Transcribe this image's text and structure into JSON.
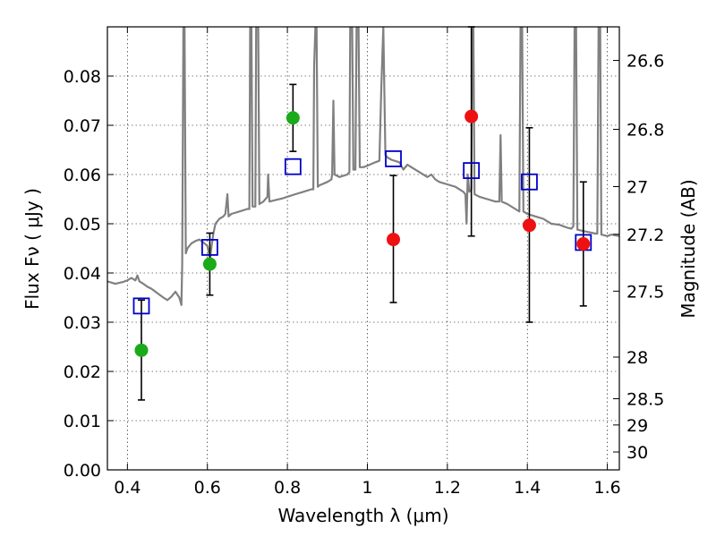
{
  "chart_data": {
    "type": "scatter",
    "xlabel": "Wavelength  λ (μm)",
    "ylabel": "Flux  Fν  ( μJy )",
    "y2label": "Magnitude (AB)",
    "xlim": [
      0.35,
      1.63
    ],
    "ylim": [
      0.0,
      0.09
    ],
    "x_ticks": [
      "0.4",
      "0.6",
      "0.8",
      "1",
      "1.2",
      "1.4",
      "1.6"
    ],
    "x_tick_values": [
      0.4,
      0.6,
      0.8,
      1.0,
      1.2,
      1.4,
      1.6
    ],
    "y_ticks": [
      "0.00",
      "0.01",
      "0.02",
      "0.03",
      "0.04",
      "0.05",
      "0.06",
      "0.07",
      "0.08"
    ],
    "y_tick_values": [
      0.0,
      0.01,
      0.02,
      0.03,
      0.04,
      0.05,
      0.06,
      0.07,
      0.08
    ],
    "y2_ticks": [
      "26.6",
      "26.8",
      "27",
      "27.2",
      "27.5",
      "28",
      "28.5",
      "29",
      "30"
    ],
    "y2_tick_values": [
      26.6,
      26.8,
      27.0,
      27.2,
      27.5,
      28.0,
      28.5,
      29.0,
      30.0
    ],
    "grid": true,
    "colors": {
      "template": "#808080",
      "green": "#1aaa1a",
      "red": "#ee1111",
      "model_box": "#0000cc",
      "errorbar": "#000000"
    },
    "series": [
      {
        "marker": "square-open",
        "color": "#0000cc",
        "points": [
          {
            "x": 0.435,
            "y": 0.0333
          },
          {
            "x": 0.606,
            "y": 0.0452
          },
          {
            "x": 0.814,
            "y": 0.0616
          },
          {
            "x": 1.065,
            "y": 0.0632
          },
          {
            "x": 1.26,
            "y": 0.0608
          },
          {
            "x": 1.405,
            "y": 0.0585
          },
          {
            "x": 1.54,
            "y": 0.0462
          }
        ]
      },
      {
        "marker": "circle",
        "color": "#1aaa1a",
        "points": [
          {
            "x": 0.435,
            "y": 0.0243,
            "ylow": 0.0142,
            "yhigh": 0.0345
          },
          {
            "x": 0.606,
            "y": 0.0418,
            "ylow": 0.0355,
            "yhigh": 0.0481
          },
          {
            "x": 0.814,
            "y": 0.0715,
            "ylow": 0.0647,
            "yhigh": 0.0783
          }
        ]
      },
      {
        "marker": "circle",
        "color": "#ee1111",
        "points": [
          {
            "x": 1.065,
            "y": 0.0468,
            "ylow": 0.034,
            "yhigh": 0.0598
          },
          {
            "x": 1.26,
            "y": 0.0718,
            "ylow": 0.0475,
            "yhigh": 0.09
          },
          {
            "x": 1.405,
            "y": 0.0497,
            "ylow": 0.03,
            "yhigh": 0.0695
          },
          {
            "x": 1.54,
            "y": 0.0459,
            "ylow": 0.0333,
            "yhigh": 0.0585
          }
        ]
      }
    ],
    "template_spectrum": [
      [
        0.35,
        0.0383
      ],
      [
        0.37,
        0.0378
      ],
      [
        0.39,
        0.0382
      ],
      [
        0.4,
        0.0385
      ],
      [
        0.41,
        0.039
      ],
      [
        0.42,
        0.0385
      ],
      [
        0.425,
        0.0395
      ],
      [
        0.43,
        0.0383
      ],
      [
        0.44,
        0.0378
      ],
      [
        0.45,
        0.0372
      ],
      [
        0.46,
        0.0368
      ],
      [
        0.47,
        0.0362
      ],
      [
        0.48,
        0.0356
      ],
      [
        0.49,
        0.035
      ],
      [
        0.5,
        0.0345
      ],
      [
        0.51,
        0.0352
      ],
      [
        0.52,
        0.0362
      ],
      [
        0.53,
        0.035
      ],
      [
        0.535,
        0.0335
      ],
      [
        0.537,
        0.042
      ],
      [
        0.54,
        0.09
      ],
      [
        0.543,
        0.09
      ],
      [
        0.546,
        0.044
      ],
      [
        0.55,
        0.045
      ],
      [
        0.56,
        0.046
      ],
      [
        0.57,
        0.0465
      ],
      [
        0.58,
        0.0468
      ],
      [
        0.59,
        0.0462
      ],
      [
        0.6,
        0.0455
      ],
      [
        0.604,
        0.044
      ],
      [
        0.607,
        0.043
      ],
      [
        0.61,
        0.0452
      ],
      [
        0.615,
        0.048
      ],
      [
        0.62,
        0.05
      ],
      [
        0.63,
        0.051
      ],
      [
        0.64,
        0.0515
      ],
      [
        0.645,
        0.052
      ],
      [
        0.65,
        0.056
      ],
      [
        0.653,
        0.0515
      ],
      [
        0.66,
        0.052
      ],
      [
        0.68,
        0.0525
      ],
      [
        0.7,
        0.053
      ],
      [
        0.705,
        0.053
      ],
      [
        0.707,
        0.09
      ],
      [
        0.71,
        0.09
      ],
      [
        0.713,
        0.0535
      ],
      [
        0.72,
        0.0535
      ],
      [
        0.722,
        0.09
      ],
      [
        0.727,
        0.09
      ],
      [
        0.73,
        0.054
      ],
      [
        0.74,
        0.0545
      ],
      [
        0.75,
        0.0555
      ],
      [
        0.752,
        0.06
      ],
      [
        0.755,
        0.0545
      ],
      [
        0.77,
        0.0548
      ],
      [
        0.79,
        0.0552
      ],
      [
        0.8,
        0.0555
      ],
      [
        0.82,
        0.056
      ],
      [
        0.84,
        0.0565
      ],
      [
        0.86,
        0.057
      ],
      [
        0.865,
        0.057
      ],
      [
        0.867,
        0.082
      ],
      [
        0.87,
        0.09
      ],
      [
        0.873,
        0.09
      ],
      [
        0.876,
        0.0575
      ],
      [
        0.88,
        0.0578
      ],
      [
        0.9,
        0.0585
      ],
      [
        0.91,
        0.059
      ],
      [
        0.912,
        0.06
      ],
      [
        0.915,
        0.075
      ],
      [
        0.918,
        0.06
      ],
      [
        0.93,
        0.0595
      ],
      [
        0.95,
        0.06
      ],
      [
        0.955,
        0.0605
      ],
      [
        0.957,
        0.09
      ],
      [
        0.962,
        0.09
      ],
      [
        0.965,
        0.061
      ],
      [
        0.97,
        0.061
      ],
      [
        0.973,
        0.09
      ],
      [
        0.978,
        0.09
      ],
      [
        0.981,
        0.0615
      ],
      [
        0.99,
        0.0615
      ],
      [
        1.0,
        0.0618
      ],
      [
        1.02,
        0.0625
      ],
      [
        1.03,
        0.0628
      ],
      [
        1.035,
        0.078
      ],
      [
        1.04,
        0.09
      ],
      [
        1.045,
        0.064
      ],
      [
        1.05,
        0.0635
      ],
      [
        1.06,
        0.063
      ],
      [
        1.08,
        0.0625
      ],
      [
        1.09,
        0.061
      ],
      [
        1.1,
        0.062
      ],
      [
        1.11,
        0.0615
      ],
      [
        1.13,
        0.0605
      ],
      [
        1.15,
        0.0595
      ],
      [
        1.16,
        0.06
      ],
      [
        1.17,
        0.059
      ],
      [
        1.18,
        0.0585
      ],
      [
        1.2,
        0.058
      ],
      [
        1.22,
        0.0575
      ],
      [
        1.24,
        0.0565
      ],
      [
        1.245,
        0.056
      ],
      [
        1.248,
        0.05
      ],
      [
        1.251,
        0.06
      ],
      [
        1.255,
        0.0565
      ],
      [
        1.26,
        0.057
      ],
      [
        1.262,
        0.09
      ],
      [
        1.265,
        0.09
      ],
      [
        1.268,
        0.056
      ],
      [
        1.28,
        0.0555
      ],
      [
        1.3,
        0.055
      ],
      [
        1.32,
        0.0545
      ],
      [
        1.33,
        0.0545
      ],
      [
        1.333,
        0.068
      ],
      [
        1.336,
        0.0545
      ],
      [
        1.35,
        0.054
      ],
      [
        1.37,
        0.053
      ],
      [
        1.38,
        0.0525
      ],
      [
        1.383,
        0.09
      ],
      [
        1.387,
        0.09
      ],
      [
        1.39,
        0.0525
      ],
      [
        1.4,
        0.052
      ],
      [
        1.42,
        0.0515
      ],
      [
        1.44,
        0.051
      ],
      [
        1.45,
        0.0505
      ],
      [
        1.46,
        0.05
      ],
      [
        1.48,
        0.0498
      ],
      [
        1.49,
        0.0495
      ],
      [
        1.5,
        0.0492
      ],
      [
        1.51,
        0.049
      ],
      [
        1.515,
        0.0495
      ],
      [
        1.518,
        0.09
      ],
      [
        1.522,
        0.09
      ],
      [
        1.525,
        0.0488
      ],
      [
        1.54,
        0.0485
      ],
      [
        1.56,
        0.0482
      ],
      [
        1.57,
        0.048
      ],
      [
        1.575,
        0.048
      ],
      [
        1.578,
        0.09
      ],
      [
        1.582,
        0.09
      ],
      [
        1.585,
        0.0478
      ],
      [
        1.6,
        0.0475
      ],
      [
        1.61,
        0.0478
      ],
      [
        1.63,
        0.0475
      ]
    ]
  }
}
